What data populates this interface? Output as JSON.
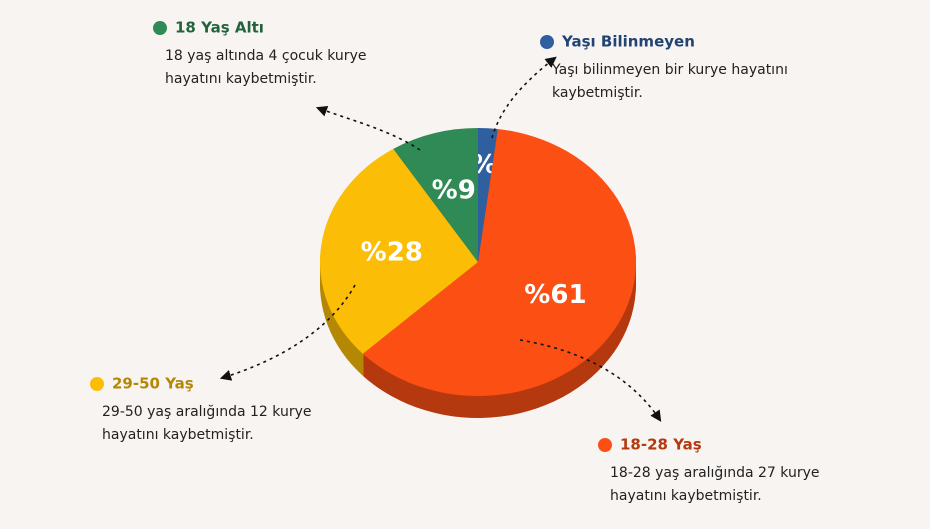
{
  "chart_data": {
    "type": "pie",
    "categories": [
      "Yaşı Bilinmeyen",
      "18-28 Yaş",
      "29-50 Yaş",
      "18 Yaş Altı"
    ],
    "values": [
      2,
      61,
      28,
      9
    ],
    "value_labels": [
      "%2",
      "%61",
      "%28",
      "%9"
    ],
    "colors": [
      "#2f5f9e",
      "#fb4f14",
      "#fbbd06",
      "#2f8a55"
    ],
    "descriptions": [
      [
        "Yaşı bilinmeyen bir kurye hayatını",
        "kaybetmiştir."
      ],
      [
        "18-28 yaş aralığında 27 kurye",
        "hayatını kaybetmiştir."
      ],
      [
        "29-50 yaş aralığında 12 kurye",
        "hayatını kaybetmiştir."
      ],
      [
        "18 yaş altında 4 çocuk kurye",
        "hayatını kaybetmiştir."
      ]
    ]
  }
}
